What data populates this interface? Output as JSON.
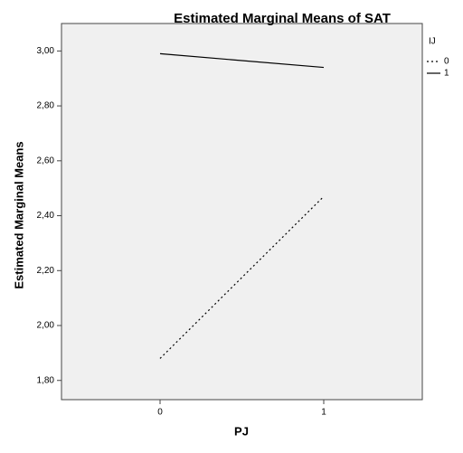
{
  "chart_data": {
    "type": "line",
    "title": "Estimated Marginal Means of SAT",
    "x_label": "PJ",
    "y_label": "Estimated Marginal Means",
    "legend_title": "IJ",
    "legend_position": "top-right",
    "categories": [
      "0",
      "1"
    ],
    "series": [
      {
        "name": "0",
        "color": "#000000",
        "dash": "dotted",
        "values": [
          1.88,
          2.47
        ]
      },
      {
        "name": "1",
        "color": "#000000",
        "dash": "solid",
        "values": [
          2.99,
          2.94
        ]
      }
    ],
    "ylim": [
      1.73,
      3.1
    ],
    "yticks": [
      {
        "value": 1.8,
        "label": "1,80"
      },
      {
        "value": 2.0,
        "label": "2,00"
      },
      {
        "value": 2.2,
        "label": "2,20"
      },
      {
        "value": 2.4,
        "label": "2,40"
      },
      {
        "value": 2.6,
        "label": "2,60"
      },
      {
        "value": 2.8,
        "label": "2,80"
      },
      {
        "value": 3.0,
        "label": "3,00"
      }
    ]
  }
}
